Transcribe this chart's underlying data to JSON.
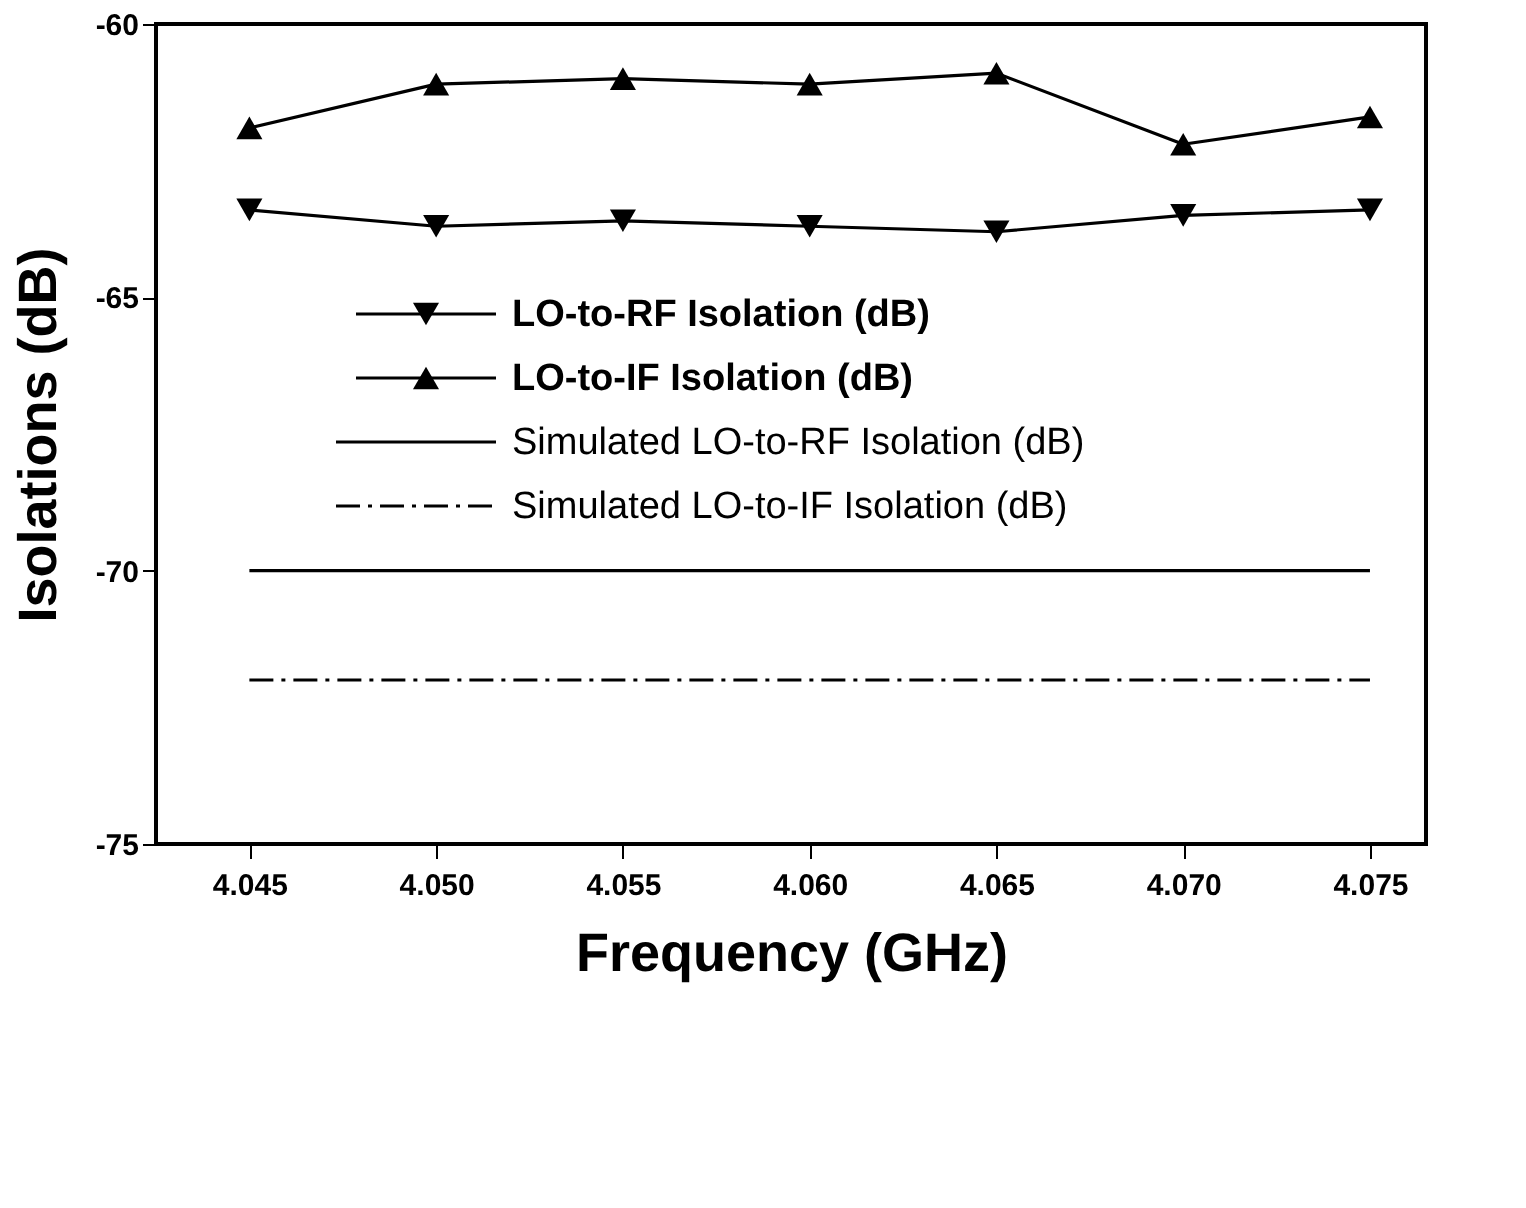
{
  "chart_data": {
    "type": "line",
    "xlabel": "Frequency (GHz)",
    "ylabel": "Isolations (dB)",
    "x": [
      4.045,
      4.05,
      4.055,
      4.06,
      4.065,
      4.07,
      4.075
    ],
    "series": [
      {
        "name": "LO-to-RF Isolation (dB)",
        "color": "#000000",
        "marker": "triangle-down",
        "line_style": "solid",
        "values": [
          -63.4,
          -63.7,
          -63.6,
          -63.7,
          -63.8,
          -63.5,
          -63.4
        ]
      },
      {
        "name": "LO-to-IF Isolation (dB)",
        "color": "#000000",
        "marker": "triangle",
        "line_style": "solid",
        "values": [
          -61.9,
          -61.1,
          -61.0,
          -61.1,
          -60.9,
          -62.2,
          -61.7
        ]
      },
      {
        "name": "Simulated LO-to-RF Isolation (dB)",
        "color": "#000000",
        "marker": "none",
        "line_style": "solid",
        "values": [
          -70,
          -70,
          -70,
          -70,
          -70,
          -70,
          -70
        ]
      },
      {
        "name": "Simulated LO-to-IF Isolation (dB)",
        "color": "#000000",
        "marker": "none",
        "line_style": "dashdot",
        "values": [
          -72,
          -72,
          -72,
          -72,
          -72,
          -72,
          -72
        ]
      }
    ],
    "xlim": [
      4.0425,
      4.0765
    ],
    "xticks": [
      4.045,
      {
        "value": 4.05,
        "label": "4.050"
      },
      4.055,
      {
        "value": 4.06,
        "label": "4.060"
      },
      4.065,
      {
        "value": 4.07,
        "label": "4.070"
      },
      4.075
    ],
    "ylim": [
      -75,
      -60
    ],
    "yticks": [
      -75,
      -70,
      -65,
      -60
    ],
    "grid": false,
    "legend": "left"
  }
}
